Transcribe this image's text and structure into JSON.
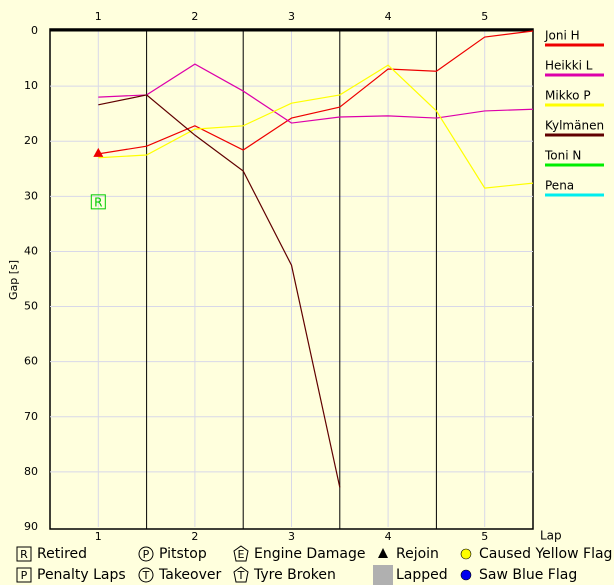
{
  "chart_data": {
    "type": "line",
    "y_label": "Gap [s]",
    "x_label": "Lap",
    "x": [
      1,
      1.5,
      2,
      2.5,
      3,
      3.5,
      4,
      4.5,
      5,
      5.5
    ],
    "xlim": [
      0.5,
      5.5
    ],
    "xticks": [
      1,
      2,
      3,
      4,
      5
    ],
    "ylim": [
      0,
      90
    ],
    "yticks": [
      0,
      10,
      20,
      30,
      40,
      50,
      60,
      70,
      80,
      90
    ],
    "y_inverted": true,
    "grid": true,
    "series": [
      {
        "name": "Joni H",
        "color": "#ee0000",
        "values": [
          22.3,
          20.9,
          17.2,
          21.6,
          15.8,
          13.8,
          6.9,
          7.3,
          1.1,
          0
        ]
      },
      {
        "name": "Heikki L",
        "color": "#dd00aa",
        "values": [
          12.0,
          11.6,
          6.0,
          10.9,
          16.7,
          15.6,
          15.4,
          15.8,
          14.5,
          14.2
        ]
      },
      {
        "name": "Mikko P",
        "color": "#ffff00",
        "values": [
          23.0,
          22.5,
          17.8,
          17.2,
          13.1,
          11.6,
          6.2,
          14.5,
          28.5,
          27.6
        ]
      },
      {
        "name": "Kylmänen",
        "color": "#600000",
        "values": [
          13.4,
          11.6,
          18.9,
          25.4,
          42.5,
          82.8,
          null,
          null,
          null,
          null
        ]
      },
      {
        "name": "Toni N",
        "color": "#00ee00",
        "values": [
          null,
          null,
          null,
          null,
          null,
          null,
          null,
          null,
          null,
          null
        ]
      },
      {
        "name": "Pena",
        "color": "#00eeee",
        "values": [
          null,
          null,
          null,
          null,
          null,
          null,
          null,
          null,
          null,
          null
        ]
      }
    ],
    "markers": [
      {
        "x": 1,
        "y": 22.3,
        "shape": "triangle",
        "color": "#ee0000"
      },
      {
        "x": 1,
        "y": 31,
        "shape": "box",
        "symbol": "R",
        "color": "#00cc00"
      }
    ],
    "key": [
      {
        "label": "Retired",
        "shape": "box",
        "symbol": "R"
      },
      {
        "label": "Penalty Laps",
        "shape": "box",
        "symbol": "P"
      },
      {
        "label": "Pitstop",
        "shape": "circle",
        "symbol": "P"
      },
      {
        "label": "Takeover",
        "shape": "circle",
        "symbol": "T"
      },
      {
        "label": "Engine Damage",
        "shape": "pentagon",
        "symbol": "E"
      },
      {
        "label": "Tyre Broken",
        "shape": "pentagon",
        "symbol": "T"
      },
      {
        "label": "Rejoin",
        "shape": "triangle",
        "color": "#000000"
      },
      {
        "label": "Lapped",
        "shape": "square",
        "color": "#b0b0b0"
      },
      {
        "label": "Caused Yellow Flag",
        "shape": "dot",
        "color": "#ffff00"
      },
      {
        "label": "Saw Blue Flag",
        "shape": "dot",
        "color": "#0000ee"
      }
    ]
  }
}
